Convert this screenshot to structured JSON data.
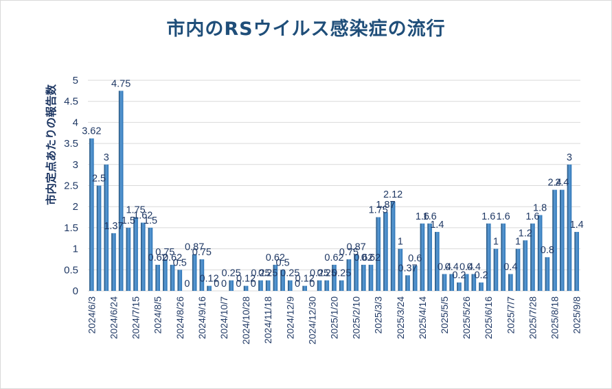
{
  "chart_data": {
    "type": "bar",
    "title": "市内のRSウイルス感染症の流行",
    "ylabel": "市内定点あたりの報告数",
    "xlabel": "",
    "ylim": [
      0,
      5
    ],
    "yticks": [
      "0",
      "0.5",
      "1",
      "1.5",
      "2",
      "2.5",
      "3",
      "3.5",
      "4",
      "4.5",
      "5"
    ],
    "grid": true,
    "legend": "none",
    "bar_color": "#2e75b6",
    "bar_gradient_top": "#5b9bd5",
    "bar_gradient_bottom": "#1f4e79",
    "tick_labels": [
      {
        "index": 0,
        "label": "2024/6/3"
      },
      {
        "index": 3,
        "label": "2024/6/24"
      },
      {
        "index": 6,
        "label": "2024/7/15"
      },
      {
        "index": 9,
        "label": "2024/8/5"
      },
      {
        "index": 12,
        "label": "2024/8/26"
      },
      {
        "index": 15,
        "label": "2024/9/16"
      },
      {
        "index": 18,
        "label": "2024/10/7"
      },
      {
        "index": 21,
        "label": "2024/10/28"
      },
      {
        "index": 24,
        "label": "2024/11/18"
      },
      {
        "index": 27,
        "label": "2024/12/9"
      },
      {
        "index": 30,
        "label": "2024/12/30"
      },
      {
        "index": 33,
        "label": "2025/1/20"
      },
      {
        "index": 36,
        "label": "2025/2/10"
      },
      {
        "index": 39,
        "label": "2025/3/3"
      },
      {
        "index": 42,
        "label": "2025/3/24"
      },
      {
        "index": 45,
        "label": "2025/4/14"
      },
      {
        "index": 48,
        "label": "2025/5/5"
      },
      {
        "index": 51,
        "label": "2025/5/26"
      },
      {
        "index": 54,
        "label": "2025/6/16"
      },
      {
        "index": 57,
        "label": "2025/7/7"
      },
      {
        "index": 60,
        "label": "2025/7/28"
      },
      {
        "index": 63,
        "label": "2025/8/18"
      },
      {
        "index": 66,
        "label": "2025/9/8"
      }
    ],
    "values": [
      3.62,
      2.5,
      3,
      1.37,
      4.75,
      1.5,
      1.75,
      1.62,
      1.5,
      0.62,
      0.75,
      0.62,
      0.5,
      0,
      0.87,
      0.75,
      0.12,
      0,
      0,
      0.25,
      0,
      0.12,
      0,
      0.25,
      0.25,
      0.62,
      0.5,
      0.25,
      0,
      0.12,
      0,
      0.25,
      0.25,
      0.62,
      0.25,
      0.75,
      0.87,
      0.62,
      0.62,
      1.75,
      1.87,
      2.12,
      1,
      0.37,
      0.6,
      1.6,
      1.6,
      1.4,
      0.4,
      0.4,
      0.2,
      0.4,
      0.4,
      0.2,
      1.6,
      1,
      1.6,
      0.4,
      1,
      1.2,
      1.6,
      1.8,
      0.8,
      2.4,
      2.4,
      3,
      1.4
    ],
    "labels": [
      "3.62",
      "2.5",
      "3",
      "1.37",
      "4.75",
      "1.5",
      "1.75",
      "1.62",
      "1.5",
      "0.62",
      "0.75",
      "0.62",
      "0.5",
      "0",
      "0.87",
      "0.75",
      "0.12",
      "0",
      "0",
      "0.25",
      "0",
      "0.12",
      "0",
      "0.25",
      "0.25",
      "0.62",
      "0.5",
      "0.25",
      "0",
      "0.12",
      "0",
      "0.25",
      "0.25",
      "0.62",
      "0.25",
      "0.75",
      "0.87",
      "0.62",
      "0.62",
      "1.75",
      "1.87",
      "2.12",
      "1",
      "0.37",
      "0.6",
      "1.6",
      "1.6",
      "1.4",
      "0.4",
      "0.4",
      "0.2",
      "0.4",
      "0.4",
      "0.2",
      "1.6",
      "1",
      "1.6",
      "0.4",
      "1",
      "1.2",
      "1.6",
      "1.8",
      "0.8",
      "2.4",
      "2.4",
      "3",
      "1.4"
    ]
  }
}
